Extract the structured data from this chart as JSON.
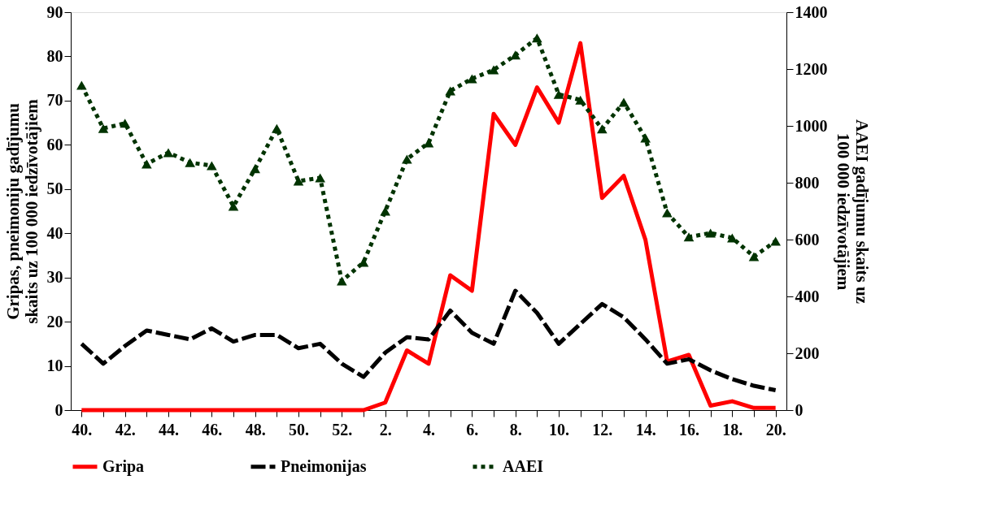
{
  "chart_data": {
    "type": "line",
    "categories": [
      "40.",
      null,
      "42.",
      null,
      "44.",
      null,
      "46.",
      null,
      "48.",
      null,
      "50.",
      null,
      "52.",
      null,
      "2.",
      null,
      "4.",
      null,
      "6.",
      null,
      "8.",
      null,
      "10.",
      null,
      "12.",
      null,
      "14.",
      null,
      "16.",
      null,
      "18.",
      null,
      "20."
    ],
    "ylabel": "Gripas, pneimoniju gadījumu skaits uz 100 000 iedzīvotājiem",
    "y2label": "AAEI gadījumu skaits uz 100 000 iedzīvotājiem",
    "ylim": [
      0,
      90
    ],
    "yticks": [
      0,
      10,
      20,
      30,
      40,
      50,
      60,
      70,
      80,
      90
    ],
    "y2lim": [
      0,
      1400
    ],
    "y2ticks": [
      0,
      200,
      400,
      600,
      800,
      1000,
      1200,
      1400
    ],
    "grid": false,
    "legend": "bottom",
    "series": [
      {
        "name": "Gripa",
        "color": "#ff0000",
        "line_style": "solid",
        "marker": "none",
        "values": [
          0,
          0,
          0,
          0,
          0,
          0,
          0,
          0,
          0,
          0,
          0,
          0,
          0,
          0,
          1.7,
          13.5,
          10.5,
          30.5,
          27,
          67,
          60,
          73,
          65,
          83,
          48,
          53,
          38.5,
          11,
          12.5,
          1,
          2,
          0.5,
          0.5
        ]
      },
      {
        "name": "Pneimonijas",
        "color": "#000000",
        "line_style": "dashed",
        "marker": "none",
        "values": [
          15,
          10.5,
          14.5,
          18,
          17,
          16,
          18.5,
          15.5,
          17,
          17,
          14,
          15,
          10.5,
          7.5,
          13,
          16.5,
          16,
          22.5,
          17.5,
          15,
          27,
          22,
          15,
          19.5,
          24,
          21,
          16,
          10.5,
          11.5,
          9,
          7,
          5.5,
          4.5
        ]
      },
      {
        "name": "AAEI",
        "color": "#003300",
        "line_style": "dotted",
        "marker": "triangle",
        "axis": "y2",
        "values": [
          1143,
          991,
          1009,
          866,
          906,
          871,
          860,
          717,
          849,
          991,
          806,
          817,
          454,
          520,
          700,
          883,
          940,
          1123,
          1166,
          1197,
          1249,
          1309,
          1111,
          1091,
          989,
          1083,
          957,
          694,
          609,
          623,
          606,
          540,
          594
        ]
      }
    ]
  }
}
